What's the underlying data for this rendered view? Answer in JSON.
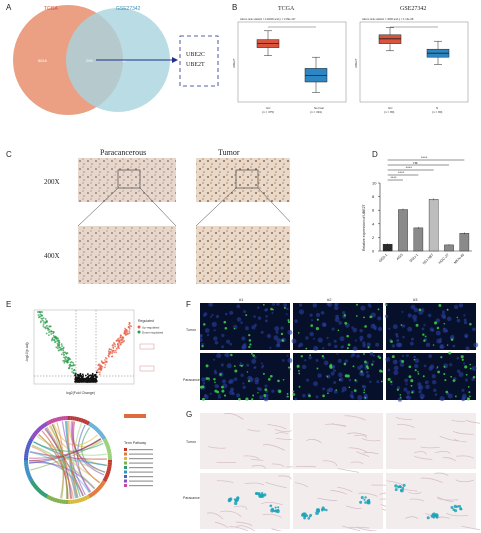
{
  "panels": {
    "A": {
      "label": "A",
      "set_left": "TCGA",
      "set_right": "GSE27342",
      "count_left": "8616",
      "count_overlap": "269",
      "count_right": "40",
      "genes": [
        "UBE2C",
        "UBE2T"
      ],
      "colors": {
        "left": "#ea9a7c",
        "right": "#a9d3de",
        "overlap": "#a8a08a",
        "arrow": "#1f2f8c"
      }
    },
    "B": {
      "label": "B",
      "plots": [
        {
          "title": "TCGA",
          "stat": "wilcox.rank statistic = 144000 and p = 2.99e-117",
          "ylabel": "UBE2T",
          "groups": [
            {
              "name": "GC",
              "n": "(n = 375)",
              "color": "#d9533d"
            },
            {
              "name": "Normal",
              "n": "(n = 391)",
              "color": "#2d86c4"
            }
          ]
        },
        {
          "title": "GSE27342",
          "stat": "wilcox.rank statistic = 4096 and p = 1.13e-08",
          "ylabel": "UBE2T",
          "groups": [
            {
              "name": "GC",
              "n": "(n = 80)",
              "color": "#d9533d"
            },
            {
              "name": "N",
              "n": "(n = 80)",
              "color": "#2d86c4"
            }
          ]
        }
      ]
    },
    "C": {
      "label": "C",
      "col_left": "Paracancerous",
      "col_right": "Tumor",
      "row_top": "200X",
      "row_bottom": "400X"
    },
    "D": {
      "label": "D",
      "ylabel": "Relative expression of UBE2T",
      "sig": [
        "****",
        "ns",
        "****",
        "****",
        "****"
      ]
    },
    "E": {
      "label": "E",
      "legend_title": "Regulated",
      "legend_up": "Up-regulated",
      "legend_down": "Down-regulated",
      "xlabel": "log2(Fold Change)",
      "ylabel": "-log10(p.adj)",
      "chord_legend_title": "Term Pathway"
    },
    "F": {
      "label": "F",
      "cols": [
        "#1",
        "#2",
        "#3"
      ],
      "row_top": "Tumor",
      "row_bottom": "Paracancerous"
    },
    "G": {
      "label": "G",
      "row_top": "Tumor",
      "row_bottom": "Paracancerous"
    }
  },
  "chart_data": [
    {
      "type": "bar",
      "panel": "D",
      "categories": [
        "GES-1",
        "AGS",
        "SNU-1",
        "NCI-N87",
        "HGC-27",
        "MKN-45"
      ],
      "values": [
        1.0,
        6.1,
        3.4,
        7.6,
        0.9,
        2.6
      ],
      "errors": [
        0.15,
        0.15,
        0.15,
        0.15,
        0.1,
        0.15
      ],
      "colors": [
        "#2b2b2b",
        "#8a8a8a",
        "#8a8a8a",
        "#bdbdbd",
        "#8a8a8a",
        "#8a8a8a"
      ],
      "ylabel": "Relative expression of UBE2T",
      "ylim": [
        0,
        10
      ],
      "yticks": [
        "0",
        "2",
        "4",
        "6",
        "8",
        "10"
      ]
    },
    {
      "type": "box",
      "panel": "B",
      "title": "TCGA",
      "categories": [
        "GC",
        "Normal"
      ],
      "ylabel": "UBE2T",
      "ylim": [
        0,
        10
      ],
      "boxes": [
        {
          "min": 5.8,
          "q1": 6.8,
          "median": 7.3,
          "q3": 7.8,
          "max": 8.9
        },
        {
          "min": 1.2,
          "q1": 2.5,
          "median": 3.3,
          "q3": 4.2,
          "max": 5.6
        }
      ]
    },
    {
      "type": "box",
      "panel": "B",
      "title": "GSE27342",
      "categories": [
        "GC",
        "N"
      ],
      "ylabel": "UBE2T",
      "ylim": [
        0,
        10
      ],
      "boxes": [
        {
          "min": 6.4,
          "q1": 7.3,
          "median": 7.9,
          "q3": 8.4,
          "max": 9.3
        },
        {
          "min": 4.7,
          "q1": 5.6,
          "median": 6.1,
          "q3": 6.6,
          "max": 7.6
        }
      ]
    }
  ]
}
